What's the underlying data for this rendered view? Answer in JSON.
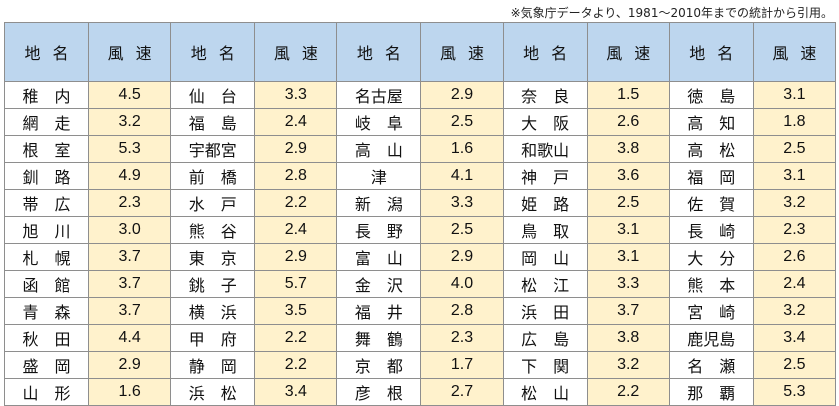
{
  "note": "※気象庁データより、1981〜2010年までの統計から引用。",
  "header": {
    "name_label": "地名",
    "speed_label": "風速"
  },
  "rows": [
    [
      [
        "稚　内",
        "4.5"
      ],
      [
        "仙　台",
        "3.3"
      ],
      [
        "名古屋",
        "2.9"
      ],
      [
        "奈　良",
        "1.5"
      ],
      [
        "徳　島",
        "3.1"
      ]
    ],
    [
      [
        "網　走",
        "3.2"
      ],
      [
        "福　島",
        "2.4"
      ],
      [
        "岐　阜",
        "2.5"
      ],
      [
        "大　阪",
        "2.6"
      ],
      [
        "高　知",
        "1.8"
      ]
    ],
    [
      [
        "根　室",
        "5.3"
      ],
      [
        "宇都宮",
        "2.9"
      ],
      [
        "高　山",
        "1.6"
      ],
      [
        "和歌山",
        "3.8"
      ],
      [
        "高　松",
        "2.5"
      ]
    ],
    [
      [
        "釧　路",
        "4.9"
      ],
      [
        "前　橋",
        "2.8"
      ],
      [
        "津",
        "4.1"
      ],
      [
        "神　戸",
        "3.6"
      ],
      [
        "福　岡",
        "3.1"
      ]
    ],
    [
      [
        "帯　広",
        "2.3"
      ],
      [
        "水　戸",
        "2.2"
      ],
      [
        "新　潟",
        "3.3"
      ],
      [
        "姫　路",
        "2.5"
      ],
      [
        "佐　賀",
        "3.2"
      ]
    ],
    [
      [
        "旭　川",
        "3.0"
      ],
      [
        "熊　谷",
        "2.4"
      ],
      [
        "長　野",
        "2.5"
      ],
      [
        "鳥　取",
        "3.1"
      ],
      [
        "長　崎",
        "2.3"
      ]
    ],
    [
      [
        "札　幌",
        "3.7"
      ],
      [
        "東　京",
        "2.9"
      ],
      [
        "富　山",
        "2.9"
      ],
      [
        "岡　山",
        "3.1"
      ],
      [
        "大　分",
        "2.6"
      ]
    ],
    [
      [
        "函　館",
        "3.7"
      ],
      [
        "銚　子",
        "5.7"
      ],
      [
        "金　沢",
        "4.0"
      ],
      [
        "松　江",
        "3.3"
      ],
      [
        "熊　本",
        "2.4"
      ]
    ],
    [
      [
        "青　森",
        "3.7"
      ],
      [
        "横　浜",
        "3.5"
      ],
      [
        "福　井",
        "2.8"
      ],
      [
        "浜　田",
        "3.7"
      ],
      [
        "宮　崎",
        "3.2"
      ]
    ],
    [
      [
        "秋　田",
        "4.4"
      ],
      [
        "甲　府",
        "2.2"
      ],
      [
        "舞　鶴",
        "2.3"
      ],
      [
        "広　島",
        "3.8"
      ],
      [
        "鹿児島",
        "3.4"
      ]
    ],
    [
      [
        "盛　岡",
        "2.9"
      ],
      [
        "静　岡",
        "2.2"
      ],
      [
        "京　都",
        "1.7"
      ],
      [
        "下　関",
        "3.2"
      ],
      [
        "名　瀬",
        "2.5"
      ]
    ],
    [
      [
        "山　形",
        "1.6"
      ],
      [
        "浜　松",
        "3.4"
      ],
      [
        "彦　根",
        "2.7"
      ],
      [
        "松　山",
        "2.2"
      ],
      [
        "那　覇",
        "5.3"
      ]
    ]
  ]
}
